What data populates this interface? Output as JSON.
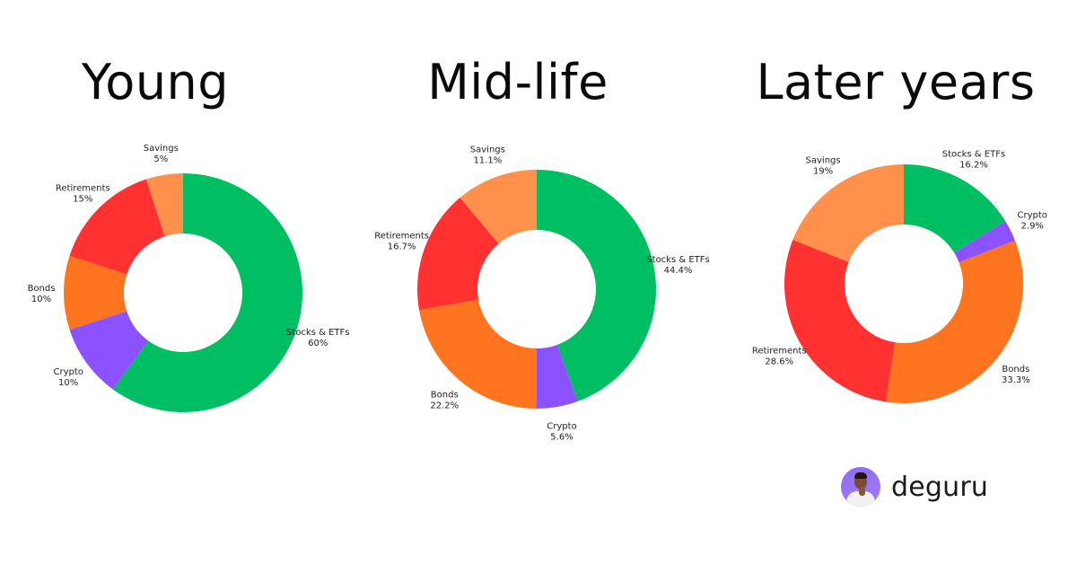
{
  "titles": [
    "Young",
    "Mid-life",
    "Later years"
  ],
  "brand": {
    "name": "deguru",
    "icon": "avatar-portrait"
  },
  "colors": {
    "Stocks & ETFs": "#00bf63",
    "Crypto": "#8c52ff",
    "Bonds": "#ff751f",
    "Retirements": "#ff3131",
    "Savings": "#ff914d"
  },
  "chart_data": [
    {
      "type": "pie",
      "title": "Young",
      "donut": true,
      "categories": [
        "Stocks & ETFs",
        "Crypto",
        "Bonds",
        "Retirements",
        "Savings"
      ],
      "values": [
        60,
        10,
        10,
        15,
        5
      ],
      "labels": [
        "60%",
        "10%",
        "10%",
        "15%",
        "5%"
      ],
      "colors": [
        "#00bf63",
        "#8c52ff",
        "#ff751f",
        "#ff3131",
        "#ff914d"
      ],
      "start_angle": "top",
      "direction": "clockwise"
    },
    {
      "type": "pie",
      "title": "Mid-life",
      "donut": true,
      "categories": [
        "Stocks & ETFs",
        "Crypto",
        "Bonds",
        "Retirements",
        "Savings"
      ],
      "values": [
        44.4,
        5.6,
        22.2,
        16.7,
        11.1
      ],
      "labels": [
        "44.4%",
        "5.6%",
        "22.2%",
        "16.7%",
        "11.1%"
      ],
      "colors": [
        "#00bf63",
        "#8c52ff",
        "#ff751f",
        "#ff3131",
        "#ff914d"
      ],
      "start_angle": "top",
      "direction": "clockwise"
    },
    {
      "type": "pie",
      "title": "Later years",
      "donut": true,
      "categories": [
        "Stocks & ETFs",
        "Crypto",
        "Bonds",
        "Retirements",
        "Savings"
      ],
      "values": [
        16.2,
        2.9,
        33.3,
        28.6,
        19
      ],
      "labels": [
        "16.2%",
        "2.9%",
        "33.3%",
        "28.6%",
        "19%"
      ],
      "colors": [
        "#00bf63",
        "#8c52ff",
        "#ff751f",
        "#ff3131",
        "#ff914d"
      ],
      "start_angle": "top",
      "direction": "clockwise"
    }
  ]
}
